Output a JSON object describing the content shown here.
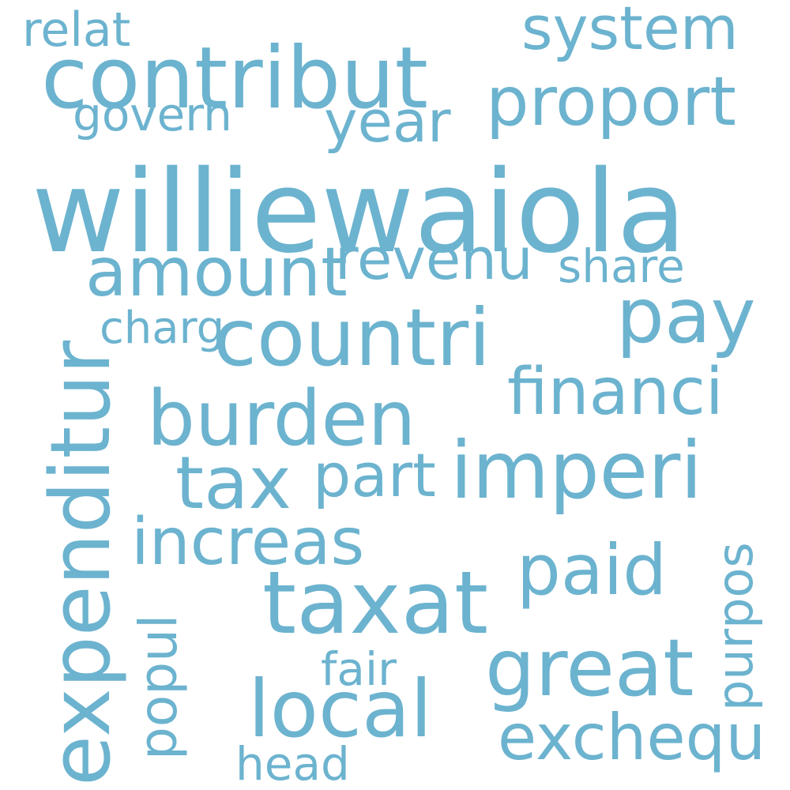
{
  "colors": {
    "background": "#ffffff",
    "word": "#6cb3cf"
  },
  "words": {
    "relat": "relat",
    "system": "system",
    "contribut": "contribut",
    "proport": "proport",
    "govern": "govern",
    "year": "year",
    "williewaiola": "williewaiola",
    "amount": "amount",
    "revenu": "revenu",
    "share": "share",
    "pay": "pay",
    "charg": "charg",
    "countri": "countri",
    "expenditur": "expenditur",
    "financi": "financi",
    "burden": "burden",
    "tax": "tax",
    "part": "part",
    "imperi": "imperi",
    "increas": "increas",
    "purpos": "purpos",
    "paid": "paid",
    "popul": "popul",
    "taxat": "taxat",
    "great": "great",
    "fair": "fair",
    "local": "local",
    "exchequ": "exchequ",
    "head": "head"
  }
}
